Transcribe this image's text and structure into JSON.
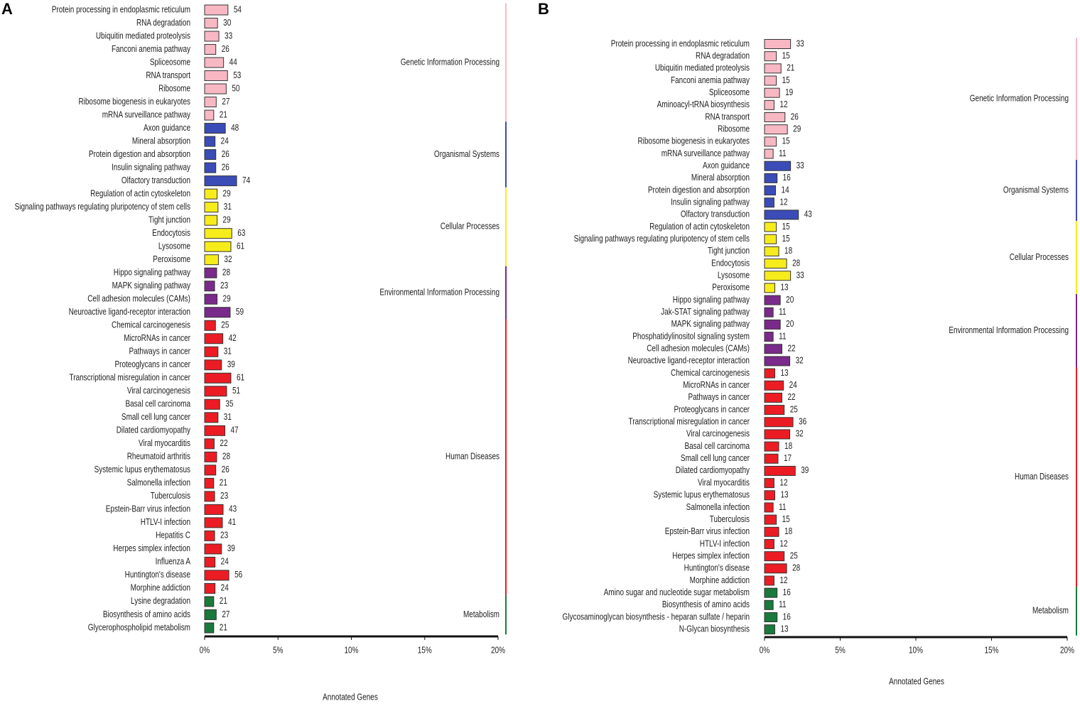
{
  "chart_data": [
    {
      "type": "bar",
      "panel": "A",
      "xlabel": "Annotated Genes",
      "xlim": [
        0,
        20
      ],
      "xticks": [
        {
          "value": 0,
          "label": "0%"
        },
        {
          "value": 5,
          "label": "5%"
        },
        {
          "value": 10,
          "label": "10%"
        },
        {
          "value": 15,
          "label": "15%"
        },
        {
          "value": 20,
          "label": "20%"
        }
      ],
      "series": [
        {
          "name": "Genetic Information Processing",
          "color": "#f7b8c4",
          "categories": [
            "Protein processing in endoplasmic reticulum",
            "RNA degradation",
            "Ubiquitin mediated proteolysis",
            "Fanconi anemia pathway",
            "Spliceosome",
            "RNA transport",
            "Ribosome",
            "Ribosome biogenesis in eukaryotes",
            "mRNA surveillance pathway"
          ],
          "values": [
            1.59,
            0.88,
            0.97,
            0.76,
            1.29,
            1.56,
            1.47,
            0.79,
            0.62
          ],
          "counts": [
            54,
            30,
            33,
            26,
            44,
            53,
            50,
            27,
            21
          ]
        },
        {
          "name": "Organismal Systems",
          "color": "#3b4cb8",
          "categories": [
            "Axon guidance",
            "Mineral absorption",
            "Protein digestion and absorption",
            "Insulin signaling pathway",
            "Olfactory transduction"
          ],
          "values": [
            1.41,
            0.71,
            0.76,
            0.76,
            2.18
          ],
          "counts": [
            48,
            24,
            26,
            26,
            74
          ]
        },
        {
          "name": "Cellular Processes",
          "color": "#f7ec1b",
          "categories": [
            "Regulation of actin cytoskeleton",
            "Signaling pathways regulating pluripotency of stem cells",
            "Tight junction",
            "Endocytosis",
            "Lysosome",
            "Peroxisome"
          ],
          "values": [
            0.85,
            0.91,
            0.85,
            1.85,
            1.79,
            0.94
          ],
          "counts": [
            29,
            31,
            29,
            63,
            61,
            32
          ]
        },
        {
          "name": "Environmental Information Processing",
          "color": "#7a2a8a",
          "categories": [
            "Hippo signaling pathway",
            "MAPK signaling pathway",
            "Cell adhesion molecules (CAMs)",
            "Neuroactive ligand-receptor interaction"
          ],
          "values": [
            0.82,
            0.68,
            0.85,
            1.74
          ],
          "counts": [
            28,
            23,
            29,
            59
          ]
        },
        {
          "name": "Human Diseases",
          "color": "#ec1c24",
          "categories": [
            "Chemical carcinogenesis",
            "MicroRNAs in cancer",
            "Pathways in cancer",
            "Proteoglycans in cancer",
            "Transcriptional misregulation in cancer",
            "Viral carcinogenesis",
            "Basal cell carcinoma",
            "Small cell lung cancer",
            "Dilated cardiomyopathy",
            "Viral myocarditis",
            "Rheumatoid arthritis",
            "Systemic lupus erythematosus",
            "Salmonella infection",
            "Tuberculosis",
            "Epstein-Barr virus infection",
            "HTLV-I infection",
            "Hepatitis C",
            "Herpes simplex infection",
            "Influenza A",
            "Huntington's disease",
            "Morphine addiction"
          ],
          "values": [
            0.74,
            1.24,
            0.91,
            1.15,
            1.79,
            1.5,
            1.03,
            0.91,
            1.38,
            0.65,
            0.82,
            0.76,
            0.62,
            0.68,
            1.26,
            1.21,
            0.68,
            1.15,
            0.71,
            1.65,
            0.71
          ],
          "counts": [
            25,
            42,
            31,
            39,
            61,
            51,
            35,
            31,
            47,
            22,
            28,
            26,
            21,
            23,
            43,
            41,
            23,
            39,
            24,
            56,
            24
          ]
        },
        {
          "name": "Metabolism",
          "color": "#1a7a3c",
          "categories": [
            "Lysine degradation",
            "Biosynthesis of amino acids",
            "Glycerophospholipid metabolism"
          ],
          "values": [
            0.62,
            0.79,
            0.62
          ],
          "counts": [
            21,
            27,
            21
          ]
        }
      ]
    },
    {
      "type": "bar",
      "panel": "B",
      "xlabel": "Annotated Genes",
      "xlim": [
        0,
        20
      ],
      "xticks": [
        {
          "value": 0,
          "label": "0%"
        },
        {
          "value": 5,
          "label": "5%"
        },
        {
          "value": 10,
          "label": "10%"
        },
        {
          "value": 15,
          "label": "15%"
        },
        {
          "value": 20,
          "label": "20%"
        }
      ],
      "series": [
        {
          "name": "Genetic Information Processing",
          "color": "#f7b8c4",
          "categories": [
            "Protein processing in endoplasmic reticulum",
            "RNA degradation",
            "Ubiquitin mediated proteolysis",
            "Fanconi anemia pathway",
            "Spliceosome",
            "Aminoacyl-tRNA biosynthesis",
            "RNA transport",
            "Ribosome",
            "Ribosome biogenesis in eukaryotes",
            "mRNA surveillance pathway"
          ],
          "values": [
            1.72,
            0.78,
            1.09,
            0.78,
            0.99,
            0.63,
            1.35,
            1.51,
            0.78,
            0.57
          ],
          "counts": [
            33,
            15,
            21,
            15,
            19,
            12,
            26,
            29,
            15,
            11
          ]
        },
        {
          "name": "Organismal Systems",
          "color": "#3b4cb8",
          "categories": [
            "Axon guidance",
            "Mineral absorption",
            "Protein digestion and absorption",
            "Insulin signaling pathway",
            "Olfactory transduction"
          ],
          "values": [
            1.72,
            0.83,
            0.73,
            0.63,
            2.24
          ],
          "counts": [
            33,
            16,
            14,
            12,
            43
          ]
        },
        {
          "name": "Cellular Processes",
          "color": "#f7ec1b",
          "categories": [
            "Regulation of actin cytoskeleton",
            "Signaling pathways regulating pluripotency of stem cells",
            "Tight junction",
            "Endocytosis",
            "Lysosome",
            "Peroxisome"
          ],
          "values": [
            0.78,
            0.78,
            0.94,
            1.46,
            1.72,
            0.68
          ],
          "counts": [
            15,
            15,
            18,
            28,
            33,
            13
          ]
        },
        {
          "name": "Environmental Information Processing",
          "color": "#7a2a8a",
          "categories": [
            "Hippo signaling pathway",
            "Jak-STAT signaling pathway",
            "MAPK signaling pathway",
            "Phosphatidylinositol signaling system",
            "Cell adhesion molecules (CAMs)",
            "Neuroactive ligand-receptor interaction"
          ],
          "values": [
            1.04,
            0.57,
            1.04,
            0.57,
            1.15,
            1.67
          ],
          "counts": [
            20,
            11,
            20,
            11,
            22,
            32
          ]
        },
        {
          "name": "Human Diseases",
          "color": "#ec1c24",
          "categories": [
            "Chemical carcinogenesis",
            "MicroRNAs in cancer",
            "Pathways in cancer",
            "Proteoglycans in cancer",
            "Transcriptional misregulation in cancer",
            "Viral carcinogenesis",
            "Basal cell carcinoma",
            "Small cell lung cancer",
            "Dilated cardiomyopathy",
            "Viral myocarditis",
            "Systemic lupus erythematosus",
            "Salmonella infection",
            "Tuberculosis",
            "Epstein-Barr virus infection",
            "HTLV-I infection",
            "Herpes simplex infection",
            "Huntington's disease",
            "Morphine addiction"
          ],
          "values": [
            0.68,
            1.25,
            1.15,
            1.3,
            1.88,
            1.67,
            0.94,
            0.89,
            2.03,
            0.63,
            0.68,
            0.57,
            0.78,
            0.94,
            0.63,
            1.3,
            1.46,
            0.63
          ],
          "counts": [
            13,
            24,
            22,
            25,
            36,
            32,
            18,
            17,
            39,
            12,
            13,
            11,
            15,
            18,
            12,
            25,
            28,
            12
          ]
        },
        {
          "name": "Metabolism",
          "color": "#1a7a3c",
          "categories": [
            "Amino sugar and nucleotide sugar metabolism",
            "Biosynthesis of amino acids",
            "Glycosaminoglycan biosynthesis - heparan sulfate / heparin",
            "N-Glycan biosynthesis"
          ],
          "values": [
            0.83,
            0.57,
            0.83,
            0.68
          ],
          "counts": [
            16,
            11,
            16,
            13
          ]
        }
      ]
    }
  ]
}
